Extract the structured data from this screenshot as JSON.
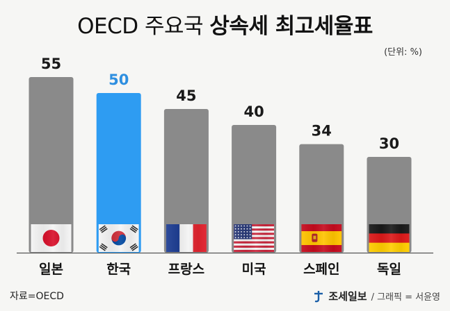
{
  "title": {
    "prefix": "OECD 주요국",
    "emphasis": "상속세 최고세율표"
  },
  "unit": "(단위: %)",
  "source": "자료=OECD",
  "credit": {
    "brand": "조세일보",
    "rest": "/ 그래픽 = 서윤영"
  },
  "colors": {
    "bar": "#8a8a8a",
    "highlight": "#2e9cf2",
    "label": "#1a1a1a",
    "highlight_label": "#2e8fe0",
    "background": "#f6f6f4"
  },
  "chart_data": {
    "type": "bar",
    "categories": [
      "일본",
      "한국",
      "프랑스",
      "미국",
      "스페인",
      "독일"
    ],
    "values": [
      55,
      50,
      45,
      40,
      34,
      30
    ],
    "value_labels": [
      "55",
      "50",
      "45",
      "40",
      "34",
      "30"
    ],
    "highlight_index": 1,
    "flags": [
      "japan-flag",
      "korea-flag",
      "france-flag",
      "usa-flag",
      "spain-flag",
      "germany-flag"
    ],
    "grid": false
  }
}
